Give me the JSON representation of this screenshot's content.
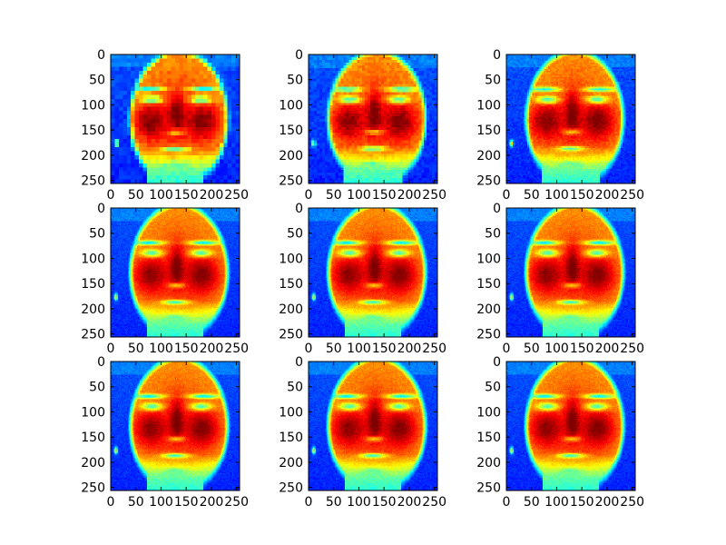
{
  "chart_data": {
    "type": "heatmap",
    "layout": "3x3 grid of image plots",
    "colormap": "jet",
    "colormap_stops": [
      "#00007f",
      "#0000ff",
      "#007fff",
      "#00ffff",
      "#7fff7f",
      "#ffff00",
      "#ff7f00",
      "#ff0000",
      "#7f0000"
    ],
    "subject": "face",
    "image_shape": [
      256,
      256
    ],
    "xlim": [
      0,
      256
    ],
    "ylim": [
      256,
      0
    ],
    "x_ticks": [
      "0",
      "50",
      "100",
      "150",
      "200",
      "250"
    ],
    "y_ticks": [
      "0",
      "50",
      "100",
      "150",
      "200",
      "250"
    ],
    "grid": false,
    "panels": [
      {
        "row": 1,
        "col": 1,
        "pixelation": 32
      },
      {
        "row": 1,
        "col": 2,
        "pixelation": 48
      },
      {
        "row": 1,
        "col": 3,
        "pixelation": 80
      },
      {
        "row": 2,
        "col": 1,
        "pixelation": 128
      },
      {
        "row": 2,
        "col": 2,
        "pixelation": 128
      },
      {
        "row": 2,
        "col": 3,
        "pixelation": 128
      },
      {
        "row": 3,
        "col": 1,
        "pixelation": 128
      },
      {
        "row": 3,
        "col": 2,
        "pixelation": 128
      },
      {
        "row": 3,
        "col": 3,
        "pixelation": 128
      }
    ]
  }
}
